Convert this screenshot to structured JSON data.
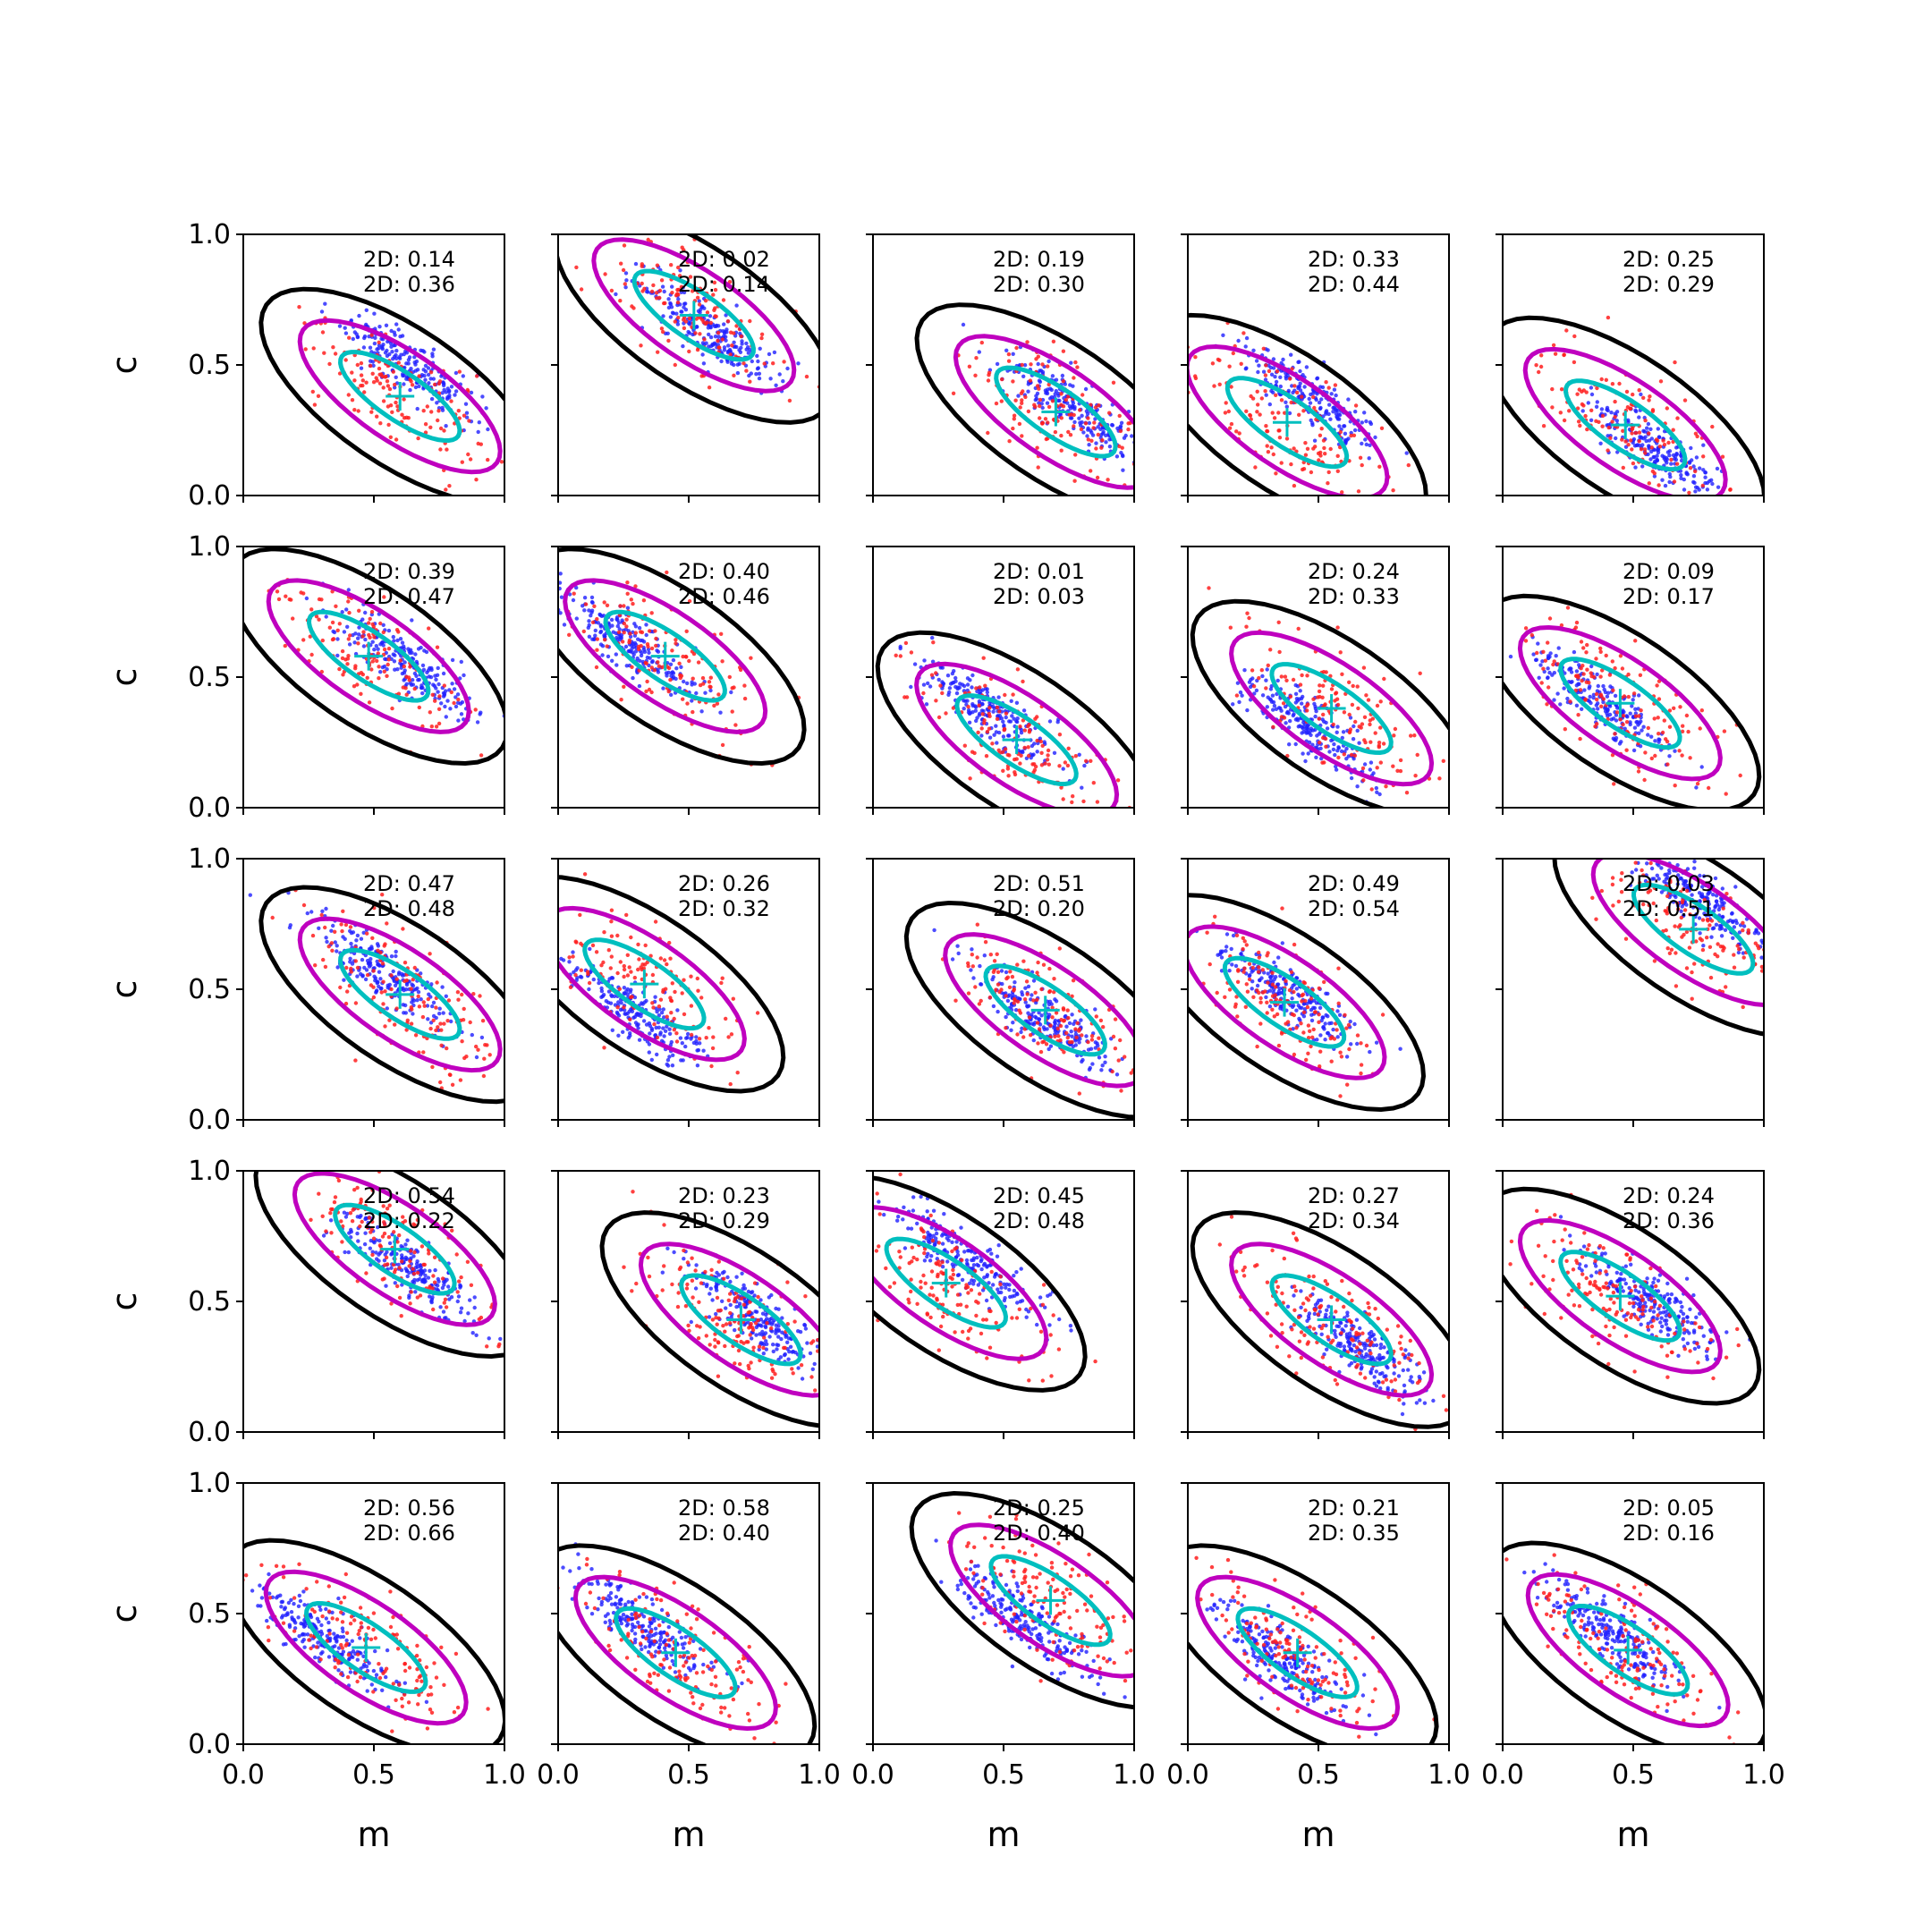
{
  "chart_data": {
    "type": "scatter",
    "layout": "5x5 grid of subplots",
    "xlabel": "m",
    "ylabel": "c",
    "xlim": [
      0.0,
      1.0
    ],
    "ylim": [
      0.0,
      1.0
    ],
    "xticks": [
      "0.0",
      "0.5",
      "1.0"
    ],
    "yticks": [
      "0.0",
      "0.5",
      "1.0"
    ],
    "grid": false,
    "colors": {
      "blue_points": "#1f1fff",
      "red_points": "#ff1f1f",
      "outer_contour": "#000000",
      "middle_contour": "#bf00bf",
      "inner_contour": "#00bfbf",
      "marker": "#00bfbf"
    },
    "panels": [
      {
        "label1": "2D: 0.14",
        "label2": "2D: 0.36",
        "marker": [
          0.6,
          0.38
        ]
      },
      {
        "label1": "2D: 0.02",
        "label2": "2D: 0.14",
        "marker": [
          0.52,
          0.69
        ]
      },
      {
        "label1": "2D: 0.19",
        "label2": "2D: 0.30",
        "marker": [
          0.7,
          0.32
        ]
      },
      {
        "label1": "2D: 0.33",
        "label2": "2D: 0.44",
        "marker": [
          0.38,
          0.28
        ]
      },
      {
        "label1": "2D: 0.25",
        "label2": "2D: 0.29",
        "marker": [
          0.47,
          0.27
        ]
      },
      {
        "label1": "2D: 0.39",
        "label2": "2D: 0.47",
        "marker": [
          0.48,
          0.58
        ]
      },
      {
        "label1": "2D: 0.40",
        "label2": "2D: 0.46",
        "marker": [
          0.41,
          0.58
        ]
      },
      {
        "label1": "2D: 0.01",
        "label2": "2D: 0.03",
        "marker": [
          0.55,
          0.26
        ]
      },
      {
        "label1": "2D: 0.24",
        "label2": "2D: 0.33",
        "marker": [
          0.55,
          0.38
        ]
      },
      {
        "label1": "2D: 0.09",
        "label2": "2D: 0.17",
        "marker": [
          0.45,
          0.4
        ]
      },
      {
        "label1": "2D: 0.47",
        "label2": "2D: 0.48",
        "marker": [
          0.6,
          0.48
        ]
      },
      {
        "label1": "2D: 0.26",
        "label2": "2D: 0.32",
        "marker": [
          0.33,
          0.52
        ]
      },
      {
        "label1": "2D: 0.51",
        "label2": "2D: 0.20",
        "marker": [
          0.66,
          0.42
        ]
      },
      {
        "label1": "2D: 0.49",
        "label2": "2D: 0.54",
        "marker": [
          0.37,
          0.45
        ]
      },
      {
        "label1": "2D: 0.03",
        "label2": "2D: 0.51",
        "marker": [
          0.73,
          0.73
        ]
      },
      {
        "label1": "2D: 0.54",
        "label2": "2D: 0.22",
        "marker": [
          0.58,
          0.7
        ]
      },
      {
        "label1": "2D: 0.23",
        "label2": "2D: 0.29",
        "marker": [
          0.7,
          0.43
        ]
      },
      {
        "label1": "2D: 0.45",
        "label2": "2D: 0.48",
        "marker": [
          0.28,
          0.57
        ]
      },
      {
        "label1": "2D: 0.27",
        "label2": "2D: 0.34",
        "marker": [
          0.55,
          0.43
        ]
      },
      {
        "label1": "2D: 0.24",
        "label2": "2D: 0.36",
        "marker": [
          0.45,
          0.52
        ]
      },
      {
        "label1": "2D: 0.56",
        "label2": "2D: 0.66",
        "marker": [
          0.47,
          0.37
        ]
      },
      {
        "label1": "2D: 0.58",
        "label2": "2D: 0.40",
        "marker": [
          0.45,
          0.35
        ]
      },
      {
        "label1": "2D: 0.25",
        "label2": "2D: 0.40",
        "marker": [
          0.68,
          0.55
        ]
      },
      {
        "label1": "2D: 0.21",
        "label2": "2D: 0.35",
        "marker": [
          0.42,
          0.35
        ]
      },
      {
        "label1": "2D: 0.05",
        "label2": "2D: 0.16",
        "marker": [
          0.48,
          0.36
        ]
      }
    ]
  }
}
